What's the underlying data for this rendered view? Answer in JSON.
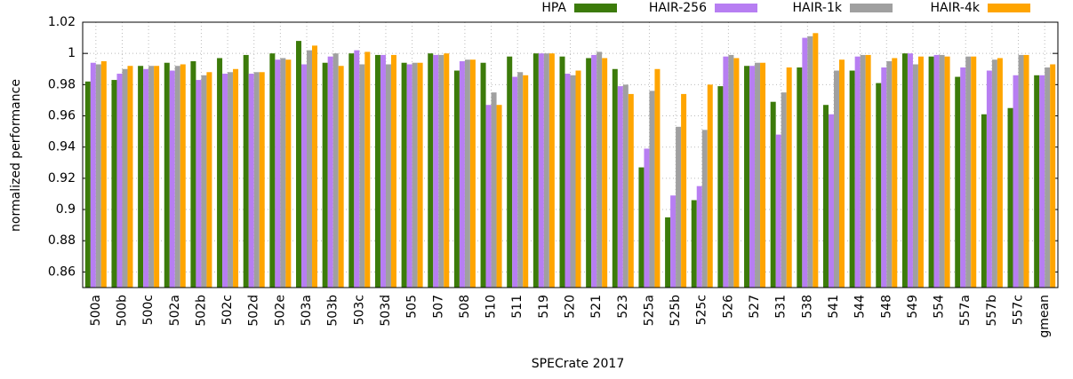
{
  "chart_data": {
    "type": "bar",
    "ylabel": "normalized performance",
    "xlabel": "SPECrate 2017",
    "categories": [
      "500a",
      "500b",
      "500c",
      "502a",
      "502b",
      "502c",
      "502d",
      "502e",
      "503a",
      "503b",
      "503c",
      "503d",
      "505",
      "507",
      "508",
      "510",
      "511",
      "519",
      "520",
      "521",
      "523",
      "525a",
      "525b",
      "525c",
      "526",
      "527",
      "531",
      "538",
      "541",
      "544",
      "548",
      "549",
      "554",
      "557a",
      "557b",
      "557c",
      "gmean"
    ],
    "series": [
      {
        "name": "HPA",
        "color": "#3c7b0a",
        "values": [
          0.982,
          0.983,
          0.992,
          0.994,
          0.995,
          0.997,
          0.999,
          1.0,
          1.008,
          0.994,
          1.0,
          0.999,
          0.994,
          1.0,
          0.989,
          0.994,
          0.998,
          1.0,
          0.998,
          0.997,
          0.99,
          0.927,
          0.895,
          0.906,
          0.979,
          0.992,
          0.969,
          0.991,
          0.967,
          0.989,
          0.981,
          1.0,
          0.998,
          0.985,
          0.961,
          0.965,
          0.986
        ]
      },
      {
        "name": "HAIR-256",
        "color": "#b77ef2",
        "values": [
          0.994,
          0.987,
          0.99,
          0.989,
          0.983,
          0.987,
          0.987,
          0.996,
          0.993,
          0.998,
          1.002,
          0.999,
          0.993,
          0.999,
          0.995,
          0.967,
          0.985,
          1.0,
          0.987,
          0.999,
          0.979,
          0.939,
          0.909,
          0.915,
          0.998,
          0.992,
          0.948,
          1.01,
          0.961,
          0.998,
          0.991,
          1.0,
          0.999,
          0.991,
          0.989,
          0.986,
          0.986
        ]
      },
      {
        "name": "HAIR-1k",
        "color": "#a0a0a0",
        "values": [
          0.993,
          0.99,
          0.992,
          0.992,
          0.986,
          0.988,
          0.988,
          0.997,
          1.002,
          1.0,
          0.993,
          0.993,
          0.994,
          0.999,
          0.996,
          0.975,
          0.988,
          1.0,
          0.986,
          1.001,
          0.98,
          0.976,
          0.953,
          0.951,
          0.999,
          0.994,
          0.975,
          1.011,
          0.989,
          0.999,
          0.995,
          0.993,
          0.999,
          0.998,
          0.996,
          0.999,
          0.991
        ]
      },
      {
        "name": "HAIR-4k",
        "color": "#ffa500",
        "values": [
          0.995,
          0.992,
          0.992,
          0.993,
          0.988,
          0.99,
          0.988,
          0.996,
          1.005,
          0.992,
          1.001,
          0.999,
          0.994,
          1.0,
          0.996,
          0.967,
          0.986,
          1.0,
          0.989,
          0.997,
          0.974,
          0.99,
          0.974,
          0.98,
          0.997,
          0.994,
          0.991,
          1.013,
          0.996,
          0.999,
          0.997,
          0.998,
          0.998,
          0.998,
          0.997,
          0.999,
          0.993
        ]
      }
    ],
    "ylim": [
      0.85,
      1.02
    ],
    "yticks": [
      0.86,
      0.88,
      0.9,
      0.92,
      0.94,
      0.96,
      0.98,
      1,
      1.02
    ],
    "grid": true,
    "legend": "top-right"
  }
}
